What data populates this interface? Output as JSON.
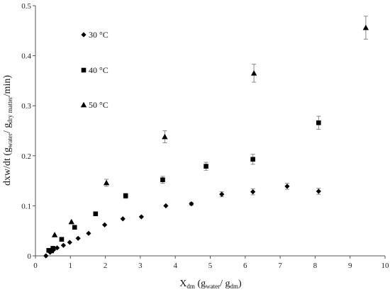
{
  "chart_data": {
    "type": "scatter",
    "xlim": [
      0,
      10
    ],
    "ylim": [
      0,
      0.5
    ],
    "xticks": [
      0,
      1,
      2,
      3,
      4,
      5,
      6,
      7,
      8,
      9,
      10
    ],
    "yticks": [
      0,
      0.1,
      0.2,
      0.3,
      0.4,
      0.5
    ],
    "xtick_labels": [
      "0",
      "1",
      "2",
      "3",
      "4",
      "5",
      "6",
      "7",
      "8",
      "9",
      "10"
    ],
    "ytick_labels": [
      "0",
      "0.1",
      "0.2",
      "0.3",
      "0.4",
      "0.5"
    ],
    "grid": false,
    "legend_position": "top-left",
    "xlabel": {
      "main": "X",
      "sub1": "dm",
      "paren_open": " (g",
      "sub2": "water",
      "slash": "/ g",
      "sub3": "dm",
      "paren_close": ")"
    },
    "ylabel": {
      "main": "dxw/dt (g",
      "sub1": "water",
      "mid": "/ g",
      "sub2": "dry matter",
      "end": "/min)"
    },
    "series": [
      {
        "name": "30 °C",
        "marker": "diamond",
        "points": [
          {
            "x": 0.3,
            "y": 0.0
          },
          {
            "x": 0.42,
            "y": 0.007
          },
          {
            "x": 0.52,
            "y": 0.012
          },
          {
            "x": 0.62,
            "y": 0.016
          },
          {
            "x": 0.8,
            "y": 0.021
          },
          {
            "x": 0.98,
            "y": 0.027
          },
          {
            "x": 1.22,
            "y": 0.035
          },
          {
            "x": 1.52,
            "y": 0.045
          },
          {
            "x": 1.98,
            "y": 0.062
          },
          {
            "x": 2.5,
            "y": 0.074
          },
          {
            "x": 3.03,
            "y": 0.078
          },
          {
            "x": 3.73,
            "y": 0.1
          },
          {
            "x": 4.46,
            "y": 0.104
          },
          {
            "x": 5.33,
            "y": 0.123
          },
          {
            "x": 6.22,
            "y": 0.128
          },
          {
            "x": 7.2,
            "y": 0.139
          },
          {
            "x": 8.1,
            "y": 0.129
          }
        ],
        "errors": [
          0,
          0,
          0,
          0,
          0,
          0,
          0,
          0,
          0,
          0,
          0,
          0,
          0.003,
          0.005,
          0.006,
          0.006,
          0.006
        ]
      },
      {
        "name": "40 °C",
        "marker": "square",
        "points": [
          {
            "x": 0.38,
            "y": 0.011
          },
          {
            "x": 0.5,
            "y": 0.015
          },
          {
            "x": 0.75,
            "y": 0.033
          },
          {
            "x": 1.12,
            "y": 0.057
          },
          {
            "x": 1.72,
            "y": 0.084
          },
          {
            "x": 2.58,
            "y": 0.12
          },
          {
            "x": 3.64,
            "y": 0.152
          },
          {
            "x": 4.88,
            "y": 0.179
          },
          {
            "x": 6.22,
            "y": 0.193
          },
          {
            "x": 8.1,
            "y": 0.266
          }
        ],
        "errors": [
          0,
          0,
          0,
          0,
          0,
          0.005,
          0.007,
          0.008,
          0.01,
          0.013
        ]
      },
      {
        "name": "50 °C",
        "marker": "triangle",
        "points": [
          {
            "x": 0.45,
            "y": 0.01
          },
          {
            "x": 0.55,
            "y": 0.042
          },
          {
            "x": 1.03,
            "y": 0.068
          },
          {
            "x": 2.03,
            "y": 0.146
          },
          {
            "x": 3.7,
            "y": 0.238
          },
          {
            "x": 6.25,
            "y": 0.365
          },
          {
            "x": 9.45,
            "y": 0.456
          }
        ],
        "errors": [
          0,
          0,
          0,
          0.007,
          0.012,
          0.018,
          0.023
        ]
      }
    ]
  }
}
